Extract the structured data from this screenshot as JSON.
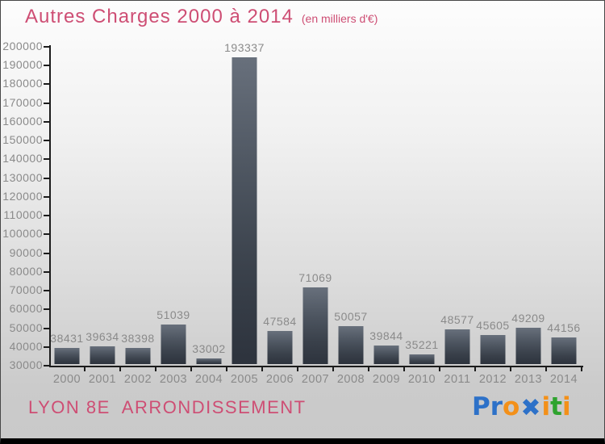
{
  "title": {
    "text": "Autres Charges 2000 à 2014",
    "subtitle": "(en milliers d'€)"
  },
  "chart_data": {
    "type": "bar",
    "title": "Autres Charges 2000 à 2014",
    "subtitle": "(en milliers d'€)",
    "categories": [
      "2000",
      "2001",
      "2002",
      "2003",
      "2004",
      "2005",
      "2006",
      "2007",
      "2008",
      "2009",
      "2010",
      "2011",
      "2012",
      "2013",
      "2014"
    ],
    "values": [
      38431,
      39634,
      38398,
      51039,
      33002,
      193337,
      47584,
      71069,
      50057,
      39844,
      35221,
      48577,
      45605,
      49209,
      44156
    ],
    "xlabel": "",
    "ylabel": "",
    "ylim": [
      30000,
      200000
    ],
    "ytick_step": 10000,
    "grid": false,
    "legend": false,
    "bar_labels_shown": true
  },
  "footer": {
    "location": "LYON 8E  ARRONDISSEMENT",
    "brand": "Proxiti",
    "logo_letters": [
      {
        "ch": "P",
        "color": "#2d71c8"
      },
      {
        "ch": "r",
        "color": "#2d71c8"
      },
      {
        "ch": "o",
        "color": "#f39019"
      },
      {
        "ch": "✖",
        "color": "#2d71c8"
      },
      {
        "ch": "i",
        "color": "#f39019"
      },
      {
        "ch": "t",
        "color": "#2fa32f"
      },
      {
        "ch": "i",
        "color": "#f39019"
      }
    ]
  },
  "colors": {
    "accent_pink": "#ce4e74",
    "label_gray": "#8a8a8a",
    "bar_top": "#68707c",
    "bar_bottom": "#2d333d",
    "axis": "#1c1c1c",
    "background_top": "#fdfdfd",
    "background_bottom": "#c9c9c9",
    "bottom_strip": "#000000"
  }
}
